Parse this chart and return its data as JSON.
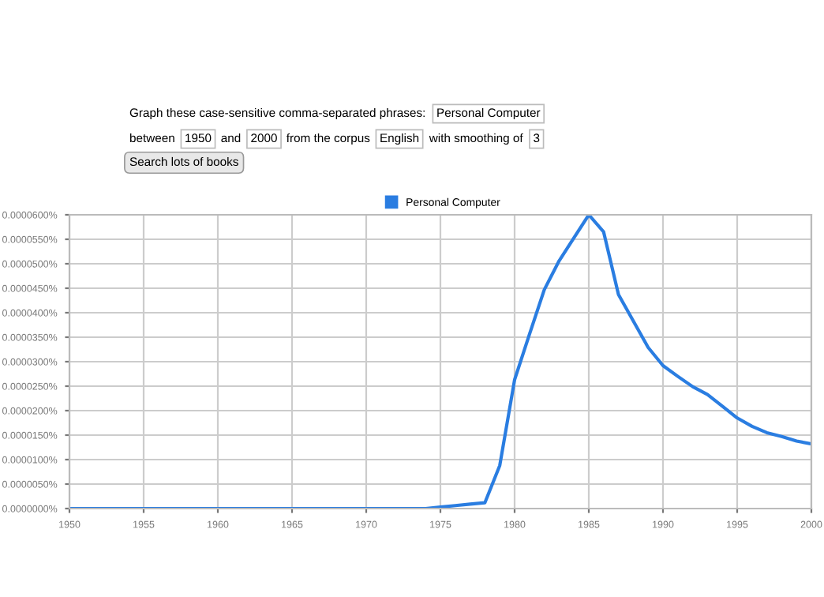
{
  "chart_data": {
    "type": "line",
    "annotations": [
      "Graph these case-sensitive comma-separated phrases:",
      "Personal Computer",
      "between",
      "1950",
      "and",
      "2000",
      "from the corpus",
      "English",
      "with smoothing of",
      "3",
      "Search lots of books"
    ],
    "x": [
      1950,
      1955,
      1960,
      1965,
      1970,
      1974,
      1975,
      1976,
      1977,
      1978,
      1979,
      1980,
      1981,
      1982,
      1983,
      1984,
      1985,
      1986,
      1987,
      1988,
      1989,
      1990,
      1991,
      1992,
      1993,
      1994,
      1995,
      1996,
      1997,
      1998,
      1999,
      2000
    ],
    "series": [
      {
        "name": "Personal Computer",
        "color": "#2a7de1",
        "values": [
          0,
          0,
          0,
          0,
          0,
          0,
          3e-07,
          6e-07,
          9e-07,
          1.2e-06,
          8.8e-06,
          2.63e-05,
          3.56e-05,
          4.47e-05,
          5.06e-05,
          5.53e-05,
          6e-05,
          5.65e-05,
          4.37e-05,
          3.83e-05,
          3.29e-05,
          2.92e-05,
          2.7e-05,
          2.49e-05,
          2.33e-05,
          2.09e-05,
          1.85e-05,
          1.68e-05,
          1.55e-05,
          1.47e-05,
          1.38e-05,
          1.32e-05
        ]
      }
    ],
    "xlim": [
      1950,
      2000
    ],
    "xticks": [
      1950,
      1955,
      1960,
      1965,
      1970,
      1975,
      1980,
      1985,
      1990,
      1995,
      2000
    ],
    "ylim": [
      0,
      6e-05
    ],
    "yticks": [
      {
        "value": 0,
        "label": "0.0000000%"
      },
      {
        "value": 5e-06,
        "label": "0.0000050%"
      },
      {
        "value": 1e-05,
        "label": "0.0000100%"
      },
      {
        "value": 1.5e-05,
        "label": "0.0000150%"
      },
      {
        "value": 2e-05,
        "label": "0.0000200%"
      },
      {
        "value": 2.5e-05,
        "label": "0.0000250%"
      },
      {
        "value": 3e-05,
        "label": "0.0000300%"
      },
      {
        "value": 3.5e-05,
        "label": "0.0000350%"
      },
      {
        "value": 4e-05,
        "label": "0.0000400%"
      },
      {
        "value": 4.5e-05,
        "label": "0.0000450%"
      },
      {
        "value": 5e-05,
        "label": "0.0000500%"
      },
      {
        "value": 5.5e-05,
        "label": "0.0000550%"
      },
      {
        "value": 6e-05,
        "label": "0.0000600%"
      }
    ],
    "grid": true,
    "legend": "top",
    "marker": "none",
    "line_style": "solid"
  }
}
